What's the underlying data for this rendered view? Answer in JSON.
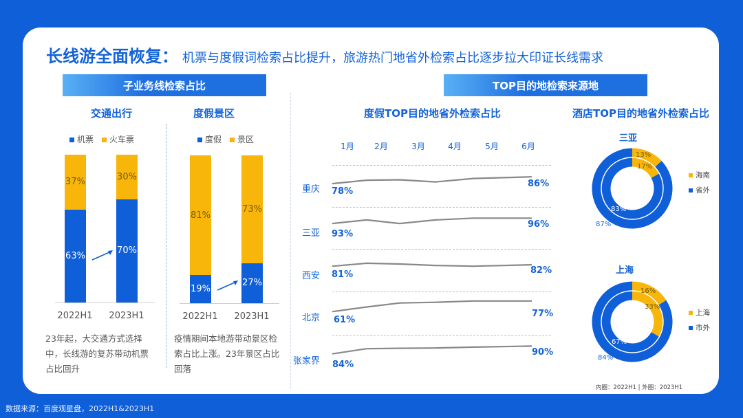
{
  "title": {
    "main": "长线游全面恢复：",
    "sub": "机票与度假词检索占比提升，旅游热门地省外检索占比逐步拉大印证长线需求"
  },
  "left_banner": "子业务线检索占比",
  "right_banner": "TOP目的地检索来源地",
  "colors": {
    "blue": "#0f5fd8",
    "gold": "#f8b60b",
    "gray": "#888888",
    "brand": "#1363d8"
  },
  "chart_data": [
    {
      "type": "bar",
      "title": "交通出行",
      "stacked": true,
      "categories": [
        "2022H1",
        "2023H1"
      ],
      "series": [
        {
          "name": "机票",
          "values": [
            63,
            70
          ],
          "labels": [
            "63%",
            "70%"
          ]
        },
        {
          "name": "火车票",
          "values": [
            37,
            30
          ],
          "labels": [
            "37%",
            "30%"
          ]
        }
      ],
      "ylim": [
        0,
        100
      ],
      "note": "23年起，大交通方式选择中，长线游的复苏带动机票占比回升"
    },
    {
      "type": "bar",
      "title": "度假景区",
      "stacked": true,
      "categories": [
        "2022H1",
        "2023H1"
      ],
      "series": [
        {
          "name": "度假",
          "values": [
            19,
            27
          ],
          "labels": [
            "19%",
            "27%"
          ]
        },
        {
          "name": "景区",
          "values": [
            81,
            73
          ],
          "labels": [
            "81%",
            "73%"
          ]
        }
      ],
      "ylim": [
        0,
        100
      ],
      "note": "疫情期间本地游带动景区检索占比上涨。23年景区占比回落"
    },
    {
      "type": "line",
      "title": "度假TOP目的地省外检索占比",
      "x": [
        "1月",
        "2月",
        "3月",
        "4月",
        "5月",
        "6月"
      ],
      "series": [
        {
          "name": "重庆",
          "values": [
            78,
            82,
            82.5,
            80,
            84,
            86
          ],
          "start_label": "78%",
          "end_label": "86%"
        },
        {
          "name": "三亚",
          "values": [
            93,
            95,
            93,
            95,
            96,
            96
          ],
          "start_label": "93%",
          "end_label": "96%"
        },
        {
          "name": "西安",
          "values": [
            81,
            83,
            82.5,
            81.5,
            81,
            82
          ],
          "start_label": "81%",
          "end_label": "82%"
        },
        {
          "name": "北京",
          "values": [
            61,
            68,
            74,
            75,
            77,
            77
          ],
          "start_label": "61%",
          "end_label": "77%"
        },
        {
          "name": "张家界",
          "values": [
            84,
            88,
            88.3,
            88.5,
            89.2,
            90
          ],
          "start_label": "84%",
          "end_label": "90%"
        }
      ]
    },
    {
      "type": "pie",
      "title": "酒店TOP目的地省外检索占比",
      "donuts": [
        {
          "name": "三亚",
          "inner": {
            "values": [
              17,
              83
            ],
            "labels": [
              "17%",
              "83%"
            ]
          },
          "outer": {
            "values": [
              13,
              87
            ],
            "labels": [
              "13%",
              "87%"
            ]
          },
          "legend": [
            "海南",
            "省外"
          ]
        },
        {
          "name": "上海",
          "inner": {
            "values": [
              33,
              67
            ],
            "labels": [
              "33%",
              "67%"
            ]
          },
          "outer": {
            "values": [
              16,
              84
            ],
            "labels": [
              "16%",
              "84%"
            ]
          },
          "legend": [
            "上海",
            "市外"
          ]
        }
      ],
      "footnote": "内圈：2022H1 | 外圈：2023H1"
    }
  ],
  "source": "数据来源：百度观星盘，2022H1&2023H1"
}
